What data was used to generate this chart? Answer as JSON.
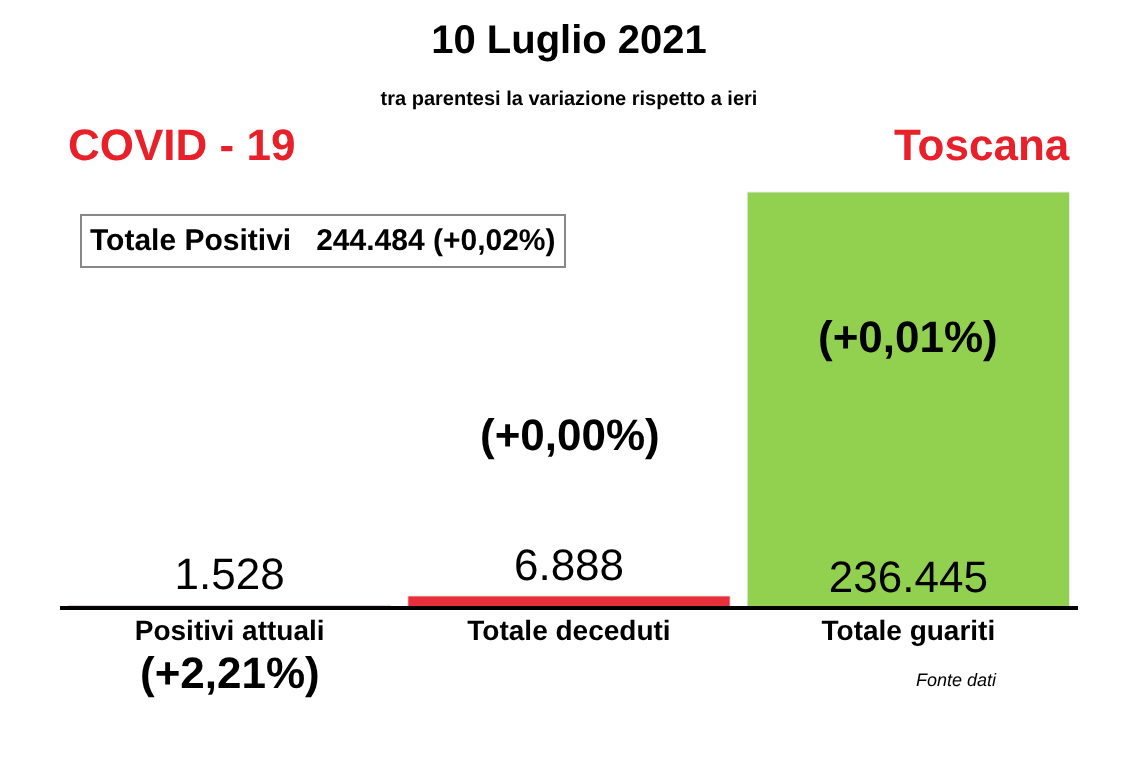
{
  "chart_data": {
    "type": "bar",
    "title": "10 Luglio 2021",
    "subtitle": "tra parentesi la variazione rispetto a ieri",
    "categories": [
      "Positivi attuali",
      "Totale deceduti",
      "Totale guariti"
    ],
    "values": [
      1528,
      6888,
      236445
    ],
    "colors": [
      "#e8303a",
      "#e8303a",
      "#92d050"
    ],
    "value_labels": [
      "1.528",
      "6.888",
      "236.445"
    ],
    "legend": false,
    "annotations": [
      "(+2,21%)",
      "(+0,00%)",
      "(+0,01%)",
      "COVID - 19",
      "Toscana",
      "Totale Positivi   244.484 (+0,02%)",
      "Fonte dati"
    ]
  }
}
